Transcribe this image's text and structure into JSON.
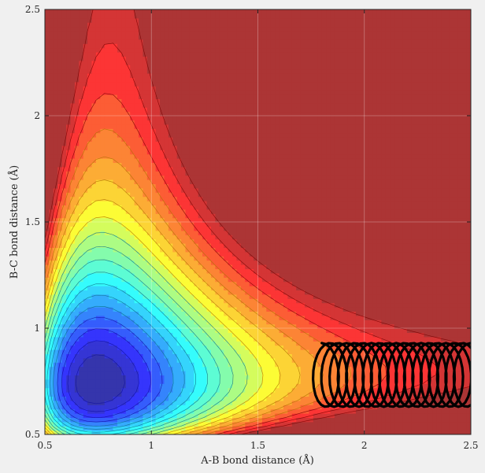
{
  "chart_data": {
    "type": "heatmap",
    "subtype": "filled-contour",
    "title": "",
    "xlabel": "A-B bond distance (Å)",
    "ylabel": "B-C bond distance (Å)",
    "xlim": [
      0.5,
      2.5
    ],
    "ylim": [
      0.5,
      2.5
    ],
    "xticks": [
      "0.5",
      "1",
      "1.5",
      "2",
      "2.5"
    ],
    "yticks": [
      "0.5",
      "1",
      "1.5",
      "2",
      "2.5"
    ],
    "grid": true,
    "legend": "none",
    "colormap": "jet",
    "colors": {
      "plot_background": "#f0f0f0",
      "trajectory": "#000000",
      "contour_lines": "#1a1a1a"
    },
    "features": {
      "reactant_valley": {
        "x_min": 0.93,
        "axis": "y",
        "min_y_shown": 1.24
      },
      "product_valley": {
        "y_min": 0.76,
        "axis": "x"
      },
      "repulsive_wall_high_energy": [
        "x < 0.65",
        "y < 0.65"
      ],
      "dissociation_plateau": "x > 1.9 and y > 1.8"
    },
    "trajectory": {
      "start": [
        1.8,
        0.93
      ],
      "end": [
        2.5,
        0.76
      ],
      "oscillation_y_range": [
        0.63,
        0.93
      ],
      "description": "vibrating product trajectory along A-B coordinate"
    }
  }
}
